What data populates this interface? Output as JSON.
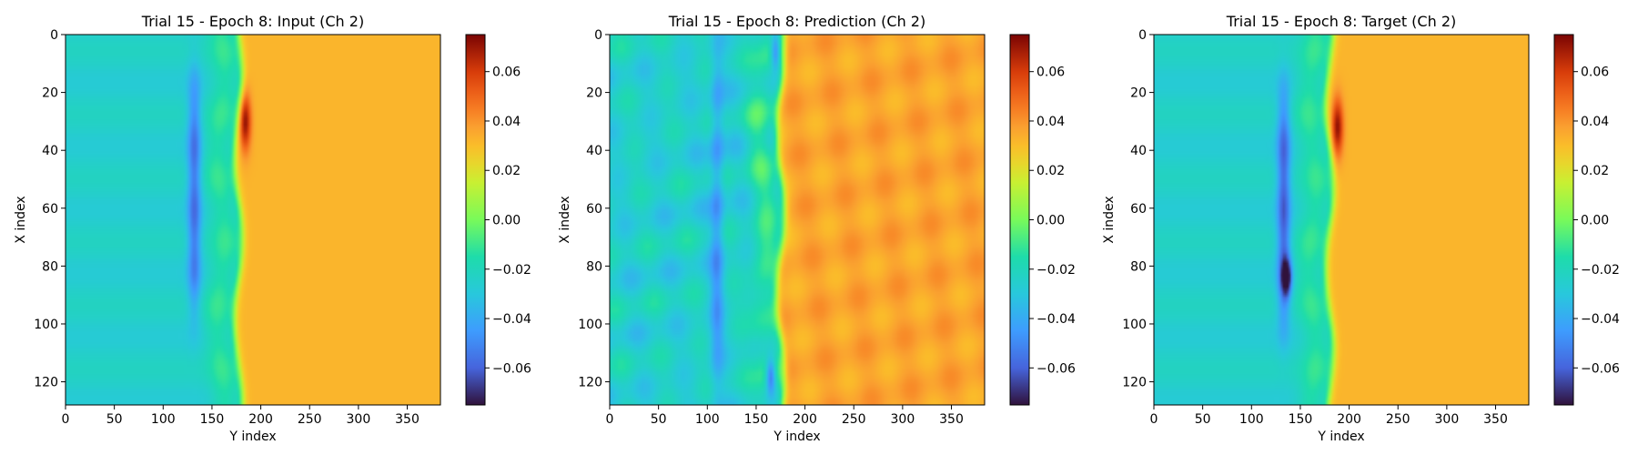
{
  "chart_data": [
    {
      "type": "heatmap",
      "title": "Trial 15 - Epoch 8: Input (Ch 2)",
      "xlabel": "Y index",
      "ylabel": "X index",
      "x_ticks": [
        0,
        50,
        100,
        150,
        200,
        250,
        300,
        350
      ],
      "y_ticks": [
        0,
        20,
        40,
        60,
        80,
        100,
        120
      ],
      "xlim": [
        0,
        384
      ],
      "ylim": [
        128,
        0
      ],
      "colormap": "turbo",
      "colorbar": {
        "range": [
          -0.075,
          0.075
        ],
        "ticks": [
          0.06,
          0.04,
          0.02,
          0.0,
          -0.02,
          -0.04,
          -0.06
        ],
        "tick_labels": [
          "0.06",
          "0.04",
          "0.02",
          "0.00",
          "−0.02",
          "−0.04",
          "−0.06"
        ]
      },
      "field": {
        "front_y": 177,
        "left_value": -0.025,
        "right_value": 0.032,
        "features": [
          {
            "kind": "low_band",
            "y_center": 132,
            "x_center": 55,
            "x_halfwidth": 42,
            "min_value": -0.056
          },
          {
            "kind": "high_spot",
            "y_center": 184,
            "x_center": 30,
            "max_value": 0.072
          }
        ]
      }
    },
    {
      "type": "heatmap",
      "title": "Trial 15 - Epoch 8: Prediction (Ch 2)",
      "xlabel": "Y index",
      "ylabel": "X index",
      "x_ticks": [
        0,
        50,
        100,
        150,
        200,
        250,
        300,
        350
      ],
      "y_ticks": [
        0,
        20,
        40,
        60,
        80,
        100,
        120
      ],
      "xlim": [
        0,
        384
      ],
      "ylim": [
        128,
        0
      ],
      "colormap": "turbo",
      "colorbar": {
        "range": [
          -0.075,
          0.075
        ],
        "ticks": [
          0.06,
          0.04,
          0.02,
          0.0,
          -0.02,
          -0.04,
          -0.06
        ],
        "tick_labels": [
          "0.06",
          "0.04",
          "0.02",
          "0.00",
          "−0.02",
          "−0.04",
          "−0.06"
        ]
      },
      "field": {
        "front_y": 175,
        "left_value": -0.025,
        "right_value": 0.036,
        "features": [
          {
            "kind": "low_band",
            "y_center": 110,
            "x_center": 64,
            "x_halfwidth": 60,
            "min_value": -0.045
          },
          {
            "kind": "low_spot",
            "y_center": 165,
            "x_center": 118,
            "min_value": -0.065
          },
          {
            "kind": "low_spot",
            "y_center": 170,
            "x_center": 6,
            "min_value": -0.06
          },
          {
            "kind": "texture",
            "amplitude": 0.006
          }
        ]
      }
    },
    {
      "type": "heatmap",
      "title": "Trial 15 - Epoch 8: Target (Ch 2)",
      "xlabel": "Y index",
      "ylabel": "X index",
      "x_ticks": [
        0,
        50,
        100,
        150,
        200,
        250,
        300,
        350
      ],
      "y_ticks": [
        0,
        20,
        40,
        60,
        80,
        100,
        120
      ],
      "xlim": [
        0,
        384
      ],
      "ylim": [
        128,
        0
      ],
      "colormap": "turbo",
      "colorbar": {
        "range": [
          -0.075,
          0.075
        ],
        "ticks": [
          0.06,
          0.04,
          0.02,
          0.0,
          -0.02,
          -0.04,
          -0.06
        ],
        "tick_labels": [
          "0.06",
          "0.04",
          "0.02",
          "0.00",
          "−0.02",
          "−0.04",
          "−0.06"
        ]
      },
      "field": {
        "front_y": 180,
        "left_value": -0.025,
        "right_value": 0.032,
        "features": [
          {
            "kind": "low_band",
            "y_center": 133,
            "x_center": 60,
            "x_halfwidth": 42,
            "min_value": -0.06
          },
          {
            "kind": "low_spot",
            "y_center": 136,
            "x_center": 84,
            "min_value": -0.07
          },
          {
            "kind": "high_spot",
            "y_center": 188,
            "x_center": 32,
            "max_value": 0.072
          }
        ]
      }
    }
  ]
}
